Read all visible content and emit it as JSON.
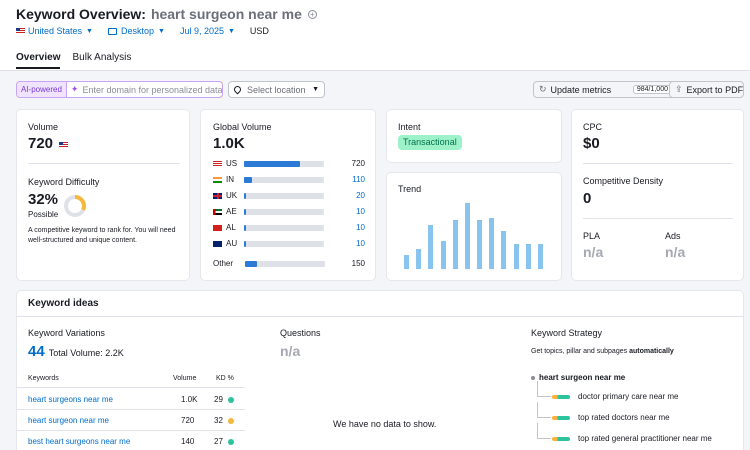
{
  "header": {
    "title": "Keyword Overview:",
    "keyword": "heart surgeon near me",
    "filters": {
      "country": "United States",
      "device": "Desktop",
      "date": "Jul 9, 2025",
      "currency": "USD"
    },
    "tabs": [
      {
        "label": "Overview",
        "active": true
      },
      {
        "label": "Bulk Analysis",
        "active": false
      }
    ]
  },
  "toolbar": {
    "ai_badge": "AI-powered",
    "domain_placeholder": "Enter domain for personalized data",
    "location_placeholder": "Select location",
    "update_label": "Update metrics",
    "update_count": "984/1,000",
    "export_label": "Export to PDF"
  },
  "volume_card": {
    "label": "Volume",
    "value": "720",
    "kd_label": "Keyword Difficulty",
    "kd_value": "32%",
    "kd_percent": 32,
    "kd_level": "Possible",
    "kd_desc": "A competitive keyword to rank for. You will need well-structured and unique content.",
    "kd_color": "#f6b73c"
  },
  "global_card": {
    "label": "Global Volume",
    "value": "1.0K",
    "rows": [
      {
        "code": "US",
        "value": "720",
        "fraction": 0.7
      },
      {
        "code": "IN",
        "value": "110",
        "fraction": 0.1
      },
      {
        "code": "UK",
        "value": "20",
        "fraction": 0.02
      },
      {
        "code": "AE",
        "value": "10",
        "fraction": 0.01
      },
      {
        "code": "AL",
        "value": "10",
        "fraction": 0.01
      },
      {
        "code": "AU",
        "value": "10",
        "fraction": 0.01
      }
    ],
    "other_label": "Other",
    "other_value": "150",
    "other_fraction": 0.15
  },
  "intent_card": {
    "label": "Intent",
    "badge": "Transactional"
  },
  "trend_card": {
    "label": "Trend",
    "values": [
      0.21,
      0.3,
      0.67,
      0.43,
      0.75,
      1.0,
      0.75,
      0.78,
      0.57,
      0.38,
      0.38,
      0.38
    ]
  },
  "cpc_card": {
    "cpc_label": "CPC",
    "cpc_value": "$0",
    "density_label": "Competitive Density",
    "density_value": "0",
    "pla_label": "PLA",
    "pla_value": "n/a",
    "ads_label": "Ads",
    "ads_value": "n/a"
  },
  "ideas": {
    "title": "Keyword ideas",
    "variations_label": "Keyword Variations",
    "variations_count": "44",
    "total_volume": "Total Volume: 2.2K",
    "col_keywords": "Keywords",
    "col_volume": "Volume",
    "col_kd": "KD %",
    "rows": [
      {
        "keyword": "heart surgeons near me",
        "volume": "1.0K",
        "kd": "29",
        "color": "#2bc49f"
      },
      {
        "keyword": "heart surgeon near me",
        "volume": "720",
        "kd": "32",
        "color": "#f6b73c"
      },
      {
        "keyword": "best heart surgeons near me",
        "volume": "140",
        "kd": "27",
        "color": "#2bc49f"
      }
    ],
    "questions_label": "Questions",
    "questions_value": "n/a",
    "no_data": "We have no data to show.",
    "strategy_label": "Keyword Strategy",
    "strategy_desc": "Get topics, pillar and subpages",
    "strategy_desc_bold": "automatically",
    "root": "heart surgeon near me",
    "children": [
      "doctor primary care near me",
      "top rated doctors near me",
      "top rated general practitioner near me"
    ]
  }
}
